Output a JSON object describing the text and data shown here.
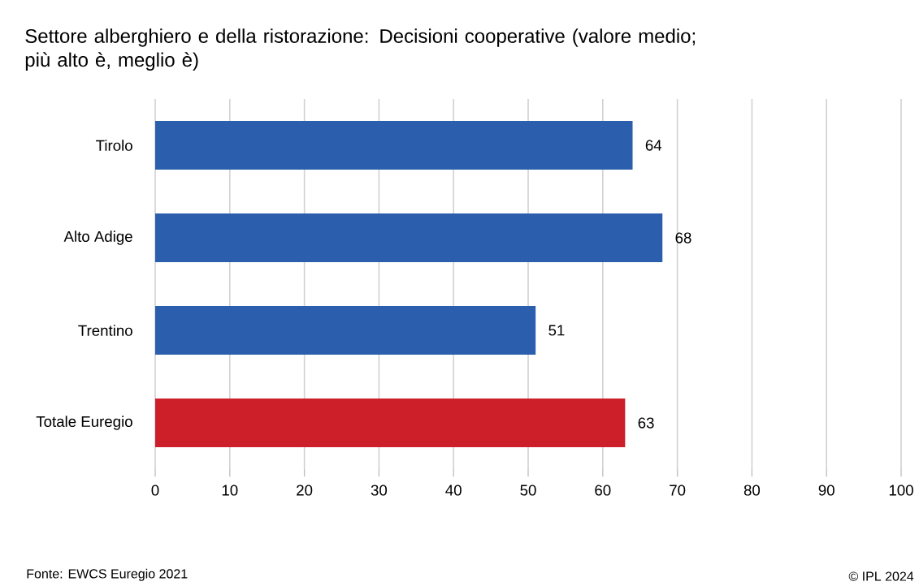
{
  "chart_data": {
    "type": "bar",
    "orientation": "horizontal",
    "title": "Settore alberghiero e della ristorazione: Decisioni cooperative (valore medio; più alto è, meglio è)",
    "categories": [
      "Tirolo",
      "Alto Adige",
      "Trentino",
      "Totale Euregio"
    ],
    "values": [
      64,
      68,
      51,
      63
    ],
    "colors": [
      "#2b5fad",
      "#2b5fad",
      "#2b5fad",
      "#cc1f2a"
    ],
    "xlim": [
      0,
      100
    ],
    "xticks": [
      0,
      10,
      20,
      30,
      40,
      50,
      60,
      70,
      80,
      90,
      100
    ],
    "grid": "x",
    "data_labels": true,
    "annotations": [
      "Fonte: EWCS Euregio 2021",
      "© IPL 2024"
    ]
  }
}
